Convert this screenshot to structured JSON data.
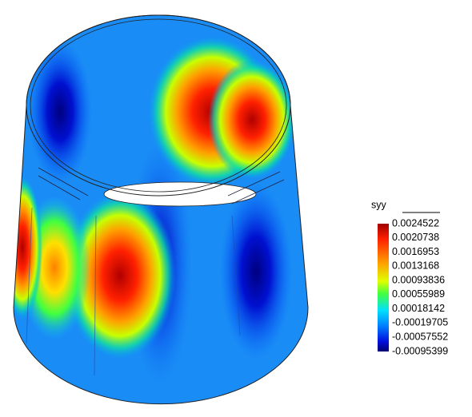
{
  "legend": {
    "title": "syy",
    "labels": [
      "0.0024522",
      "0.0020738",
      "0.0016953",
      "0.0013168",
      "0.00093836",
      "0.00055989",
      "0.00018142",
      "-0.00019705",
      "-0.00057552",
      "-0.00095399"
    ]
  }
}
